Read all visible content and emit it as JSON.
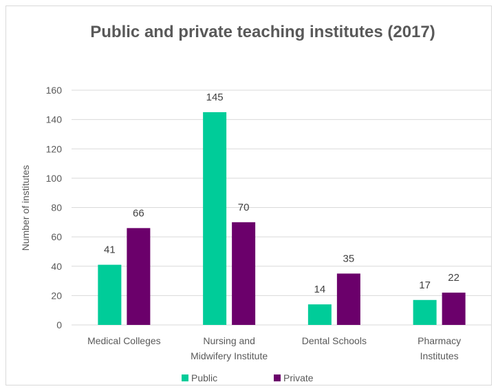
{
  "chart_data": {
    "type": "bar",
    "title": "Public and private teaching institutes (2017)",
    "xlabel": "",
    "ylabel": "Number of institutes",
    "ylim": [
      0,
      160
    ],
    "yticks": [
      0,
      20,
      40,
      60,
      80,
      100,
      120,
      140,
      160
    ],
    "categories": [
      [
        "Medical Colleges"
      ],
      [
        "Nursing and",
        "Midwifery Institute"
      ],
      [
        "Dental Schools"
      ],
      [
        "Pharmacy",
        "Institutes"
      ]
    ],
    "series": [
      {
        "name": "Public",
        "values": [
          41,
          145,
          14,
          17
        ],
        "color": "#00cc99"
      },
      {
        "name": "Private",
        "values": [
          66,
          70,
          35,
          22
        ],
        "color": "#6b006b"
      }
    ],
    "grid": true,
    "legend": "bottom"
  },
  "colors": {
    "grid": "#d9d9d9",
    "frame": "#d9d9d9"
  }
}
